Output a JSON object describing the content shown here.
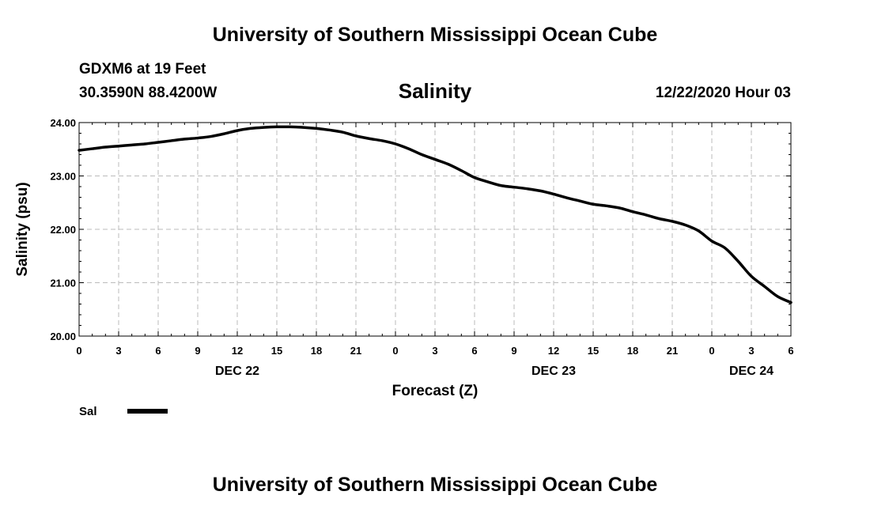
{
  "header": {
    "title_top": "University of Southern Mississippi Ocean Cube",
    "station": "GDXM6 at 19 Feet",
    "coords": "30.3590N 88.4200W",
    "parameter": "Salinity",
    "datetime": "12/22/2020 Hour 03",
    "title_bottom": "University of Southern Mississippi Ocean Cube"
  },
  "chart_data": {
    "type": "line",
    "title": "Salinity",
    "xlabel": "Forecast (Z)",
    "ylabel": "Salinity (psu)",
    "xlim": [
      0,
      54
    ],
    "ylim": [
      20.0,
      24.0
    ],
    "grid": true,
    "x_ticks": [
      0,
      3,
      6,
      9,
      12,
      15,
      18,
      21,
      24,
      27,
      30,
      33,
      36,
      39,
      42,
      45,
      48,
      51,
      54
    ],
    "x_tick_labels": [
      "0",
      "3",
      "6",
      "9",
      "12",
      "15",
      "18",
      "21",
      "0",
      "3",
      "6",
      "9",
      "12",
      "15",
      "18",
      "21",
      "0",
      "3",
      "6"
    ],
    "y_ticks": [
      20.0,
      21.0,
      22.0,
      23.0,
      24.0
    ],
    "y_tick_labels": [
      "20.00",
      "21.00",
      "22.00",
      "23.00",
      "24.00"
    ],
    "day_labels": [
      {
        "x": 12,
        "label": "DEC 22"
      },
      {
        "x": 36,
        "label": "DEC 23"
      },
      {
        "x": 51,
        "label": "DEC 24"
      }
    ],
    "series": [
      {
        "name": "Sal",
        "color": "#000000",
        "x": [
          0,
          1,
          2,
          3,
          4,
          5,
          6,
          7,
          8,
          9,
          10,
          11,
          12,
          13,
          14,
          15,
          16,
          17,
          18,
          19,
          20,
          21,
          22,
          23,
          24,
          25,
          26,
          27,
          28,
          29,
          30,
          31,
          32,
          33,
          34,
          35,
          36,
          37,
          38,
          39,
          40,
          41,
          42,
          43,
          44,
          45,
          46,
          47,
          48,
          49,
          50,
          51,
          52,
          53,
          54
        ],
        "values": [
          23.48,
          23.51,
          23.54,
          23.56,
          23.58,
          23.6,
          23.63,
          23.66,
          23.69,
          23.71,
          23.74,
          23.79,
          23.85,
          23.89,
          23.91,
          23.92,
          23.92,
          23.91,
          23.89,
          23.86,
          23.82,
          23.75,
          23.7,
          23.66,
          23.6,
          23.51,
          23.4,
          23.31,
          23.22,
          23.1,
          22.97,
          22.89,
          22.82,
          22.79,
          22.76,
          22.72,
          22.66,
          22.59,
          22.53,
          22.47,
          22.44,
          22.4,
          22.33,
          22.27,
          22.2,
          22.15,
          22.08,
          21.97,
          21.78,
          21.65,
          21.4,
          21.12,
          20.93,
          20.74,
          20.63
        ]
      }
    ],
    "legend": {
      "label": "Sal",
      "placement": "bottom-left"
    }
  }
}
